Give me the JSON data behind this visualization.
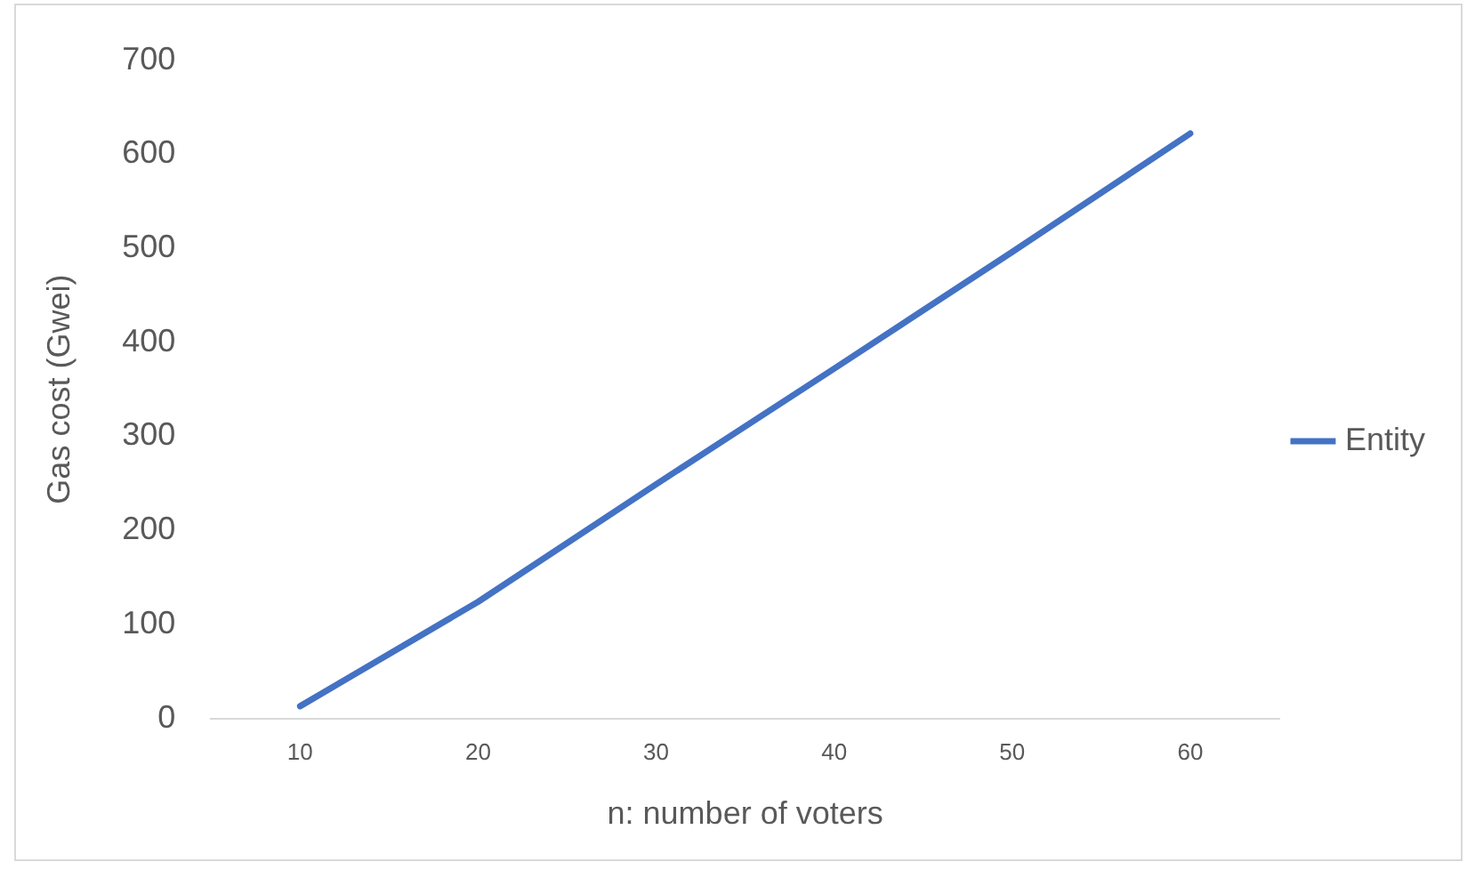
{
  "chart_data": {
    "type": "line",
    "xlabel": "n: number of voters",
    "ylabel": "Gas cost (Gwei)",
    "categories": [
      "10",
      "20",
      "30",
      "40",
      "50",
      "60"
    ],
    "series": [
      {
        "name": "Entity",
        "color": "#4472c4",
        "values": [
          13,
          124,
          249,
          372,
          496,
          622
        ]
      }
    ],
    "ylim": [
      0,
      700
    ],
    "yticks": [
      0,
      100,
      200,
      300,
      400,
      500,
      600,
      700
    ],
    "grid": false,
    "legend": "right",
    "marker": "none"
  }
}
